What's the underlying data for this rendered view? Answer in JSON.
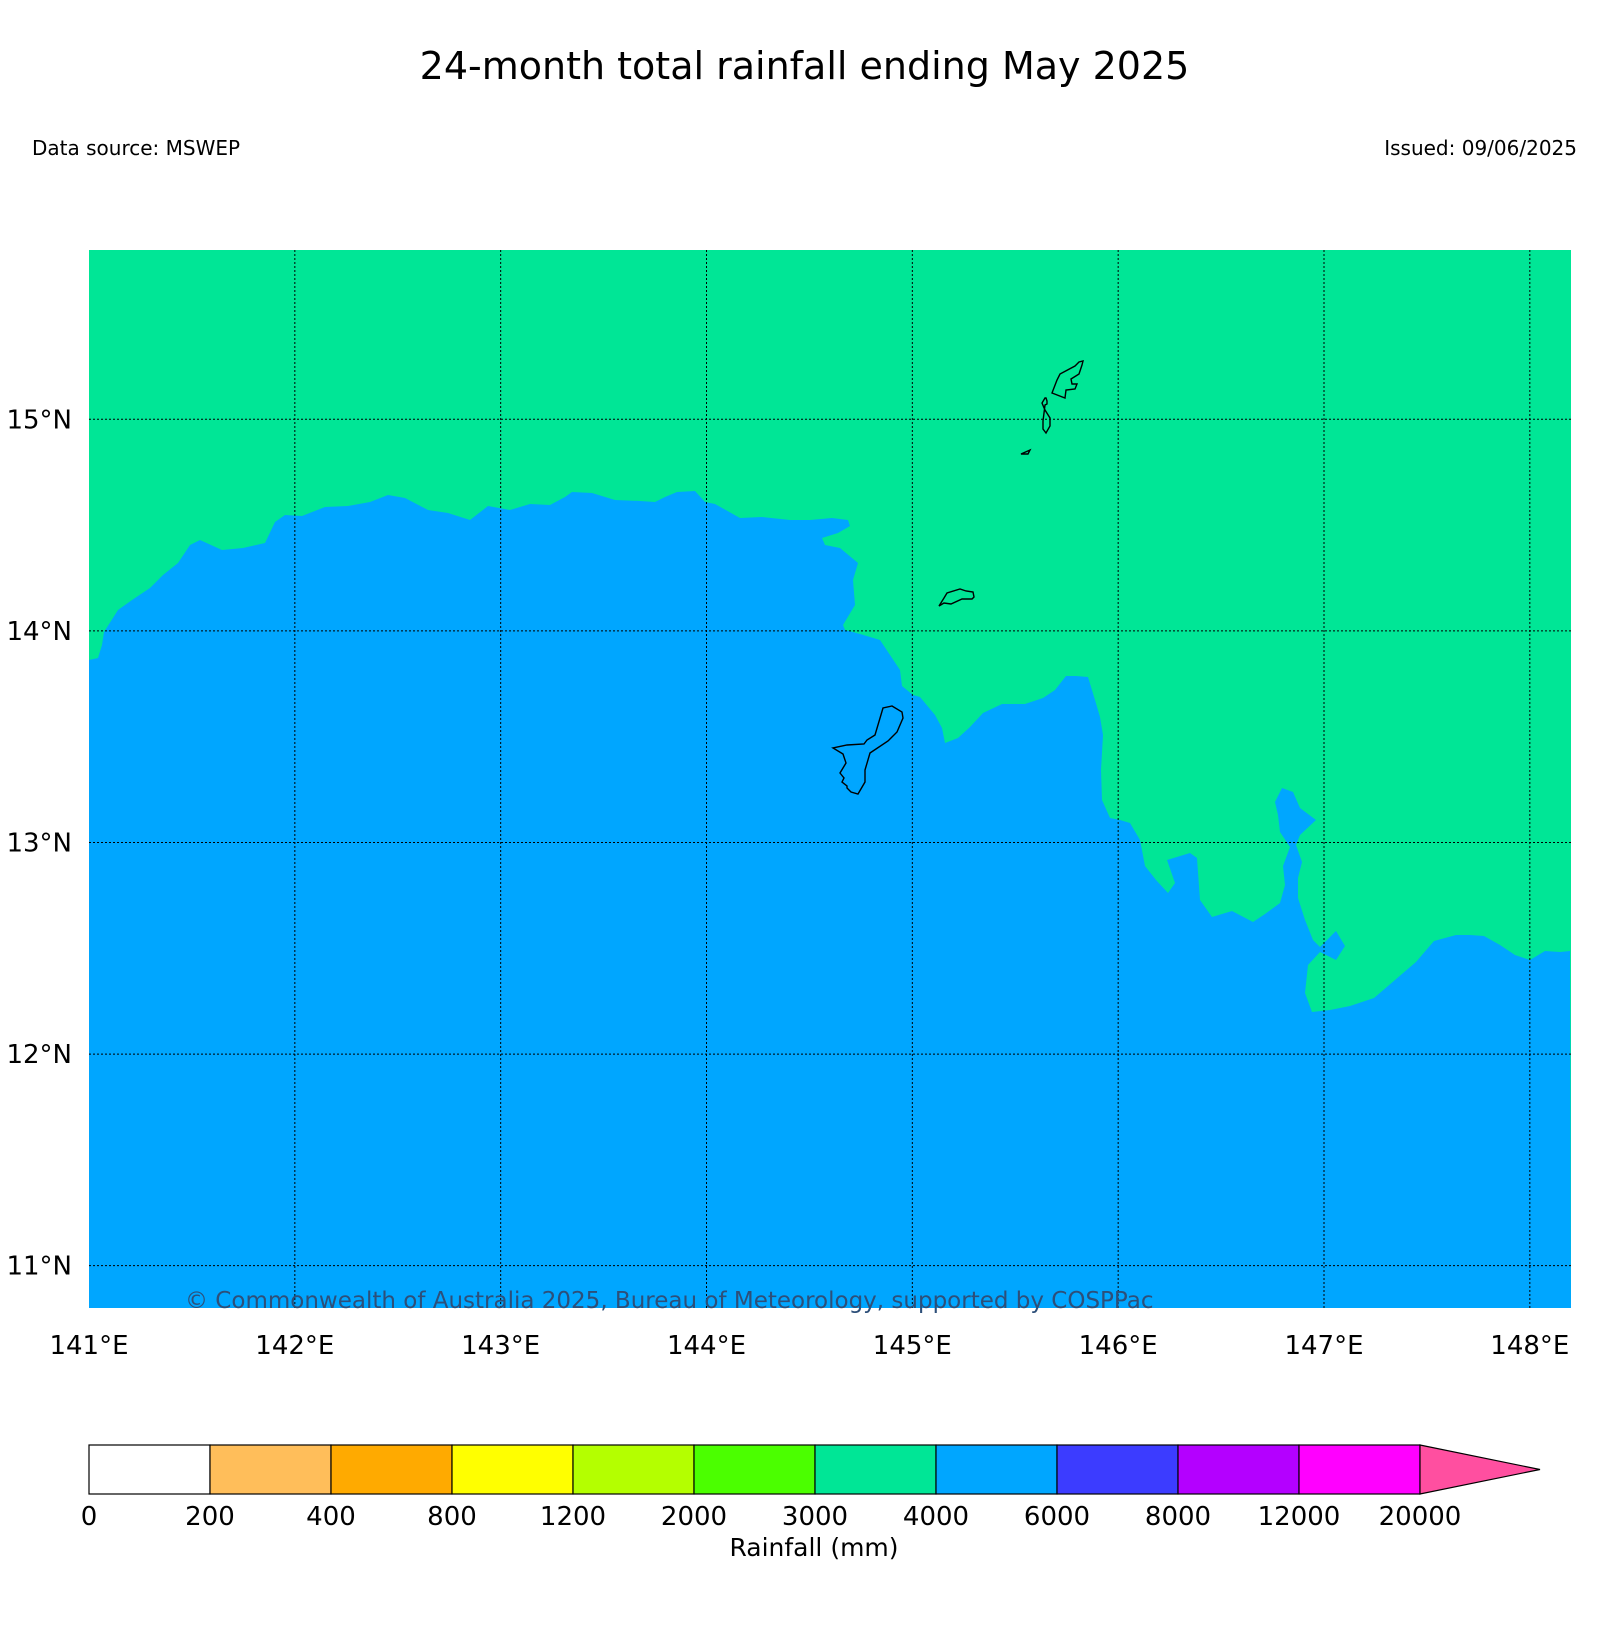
{
  "title": "24-month total rainfall ending May 2025",
  "data_source": "Data source: MSWEP",
  "issued": "Issued: 09/06/2025",
  "copyright": "© Commonwealth of Australia 2025, Bureau of Meteorology, supported by COSPPac",
  "map": {
    "lon_range": [
      141,
      148.2
    ],
    "lat_range": [
      10.8,
      15.8
    ],
    "lon_ticks": [
      {
        "value": 141,
        "label": "141°E"
      },
      {
        "value": 142,
        "label": "142°E"
      },
      {
        "value": 143,
        "label": "143°E"
      },
      {
        "value": 144,
        "label": "144°E"
      },
      {
        "value": 145,
        "label": "145°E"
      },
      {
        "value": 146,
        "label": "146°E"
      },
      {
        "value": 147,
        "label": "147°E"
      },
      {
        "value": 148,
        "label": "148°E"
      }
    ],
    "lat_ticks": [
      {
        "value": 15,
        "label": "15°N"
      },
      {
        "value": 14,
        "label": "14°N"
      },
      {
        "value": 13,
        "label": "13°N"
      },
      {
        "value": 12,
        "label": "12°N"
      },
      {
        "value": 11,
        "label": "11°N"
      }
    ],
    "gridlines": true,
    "regions": [
      {
        "category": "3000–4000",
        "color": "#00e696",
        "area": "north"
      },
      {
        "category": "4000–6000",
        "color": "#00a6ff",
        "area": "south"
      }
    ]
  },
  "legend": {
    "label": "Rainfall (mm)",
    "bins": [
      {
        "from": "0",
        "color": "#ffffff"
      },
      {
        "from": "200",
        "color": "#ffbe5a"
      },
      {
        "from": "400",
        "color": "#ffaa00"
      },
      {
        "from": "800",
        "color": "#ffff00"
      },
      {
        "from": "1200",
        "color": "#b4ff00"
      },
      {
        "from": "2000",
        "color": "#4bff00"
      },
      {
        "from": "3000",
        "color": "#00e696"
      },
      {
        "from": "4000",
        "color": "#00a6ff"
      },
      {
        "from": "6000",
        "color": "#3c3cff"
      },
      {
        "from": "8000",
        "color": "#b400ff"
      },
      {
        "from": "12000",
        "color": "#ff00ff"
      }
    ],
    "last_label": "20000",
    "extend_color": "#ff4fa0"
  }
}
